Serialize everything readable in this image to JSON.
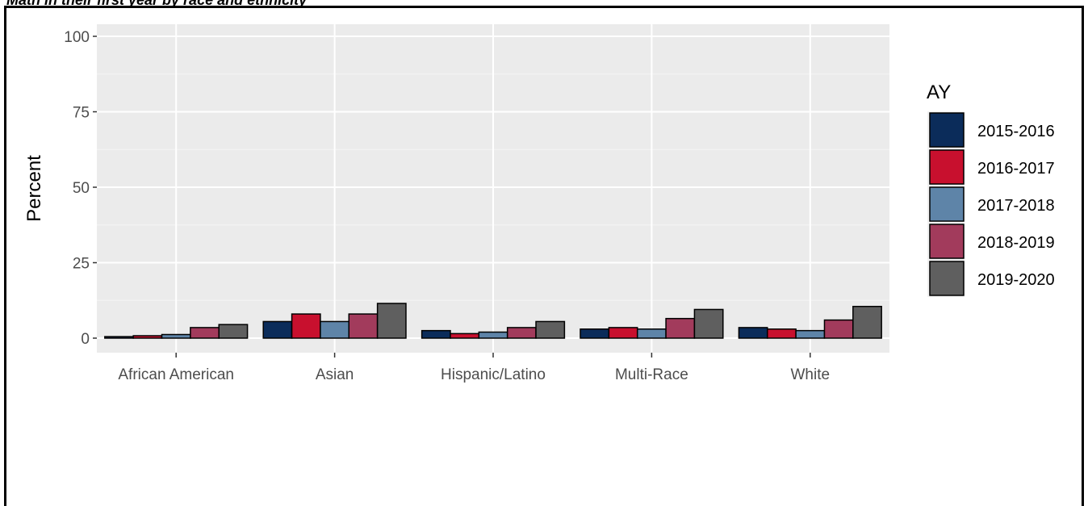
{
  "page": {
    "caption": "Math in their first year by race and ethnicity"
  },
  "chart_data": {
    "type": "bar",
    "title": "",
    "xlabel": "",
    "ylabel": "Percent",
    "ylim": [
      0,
      100
    ],
    "yticks": [
      0,
      25,
      50,
      75,
      100
    ],
    "grid": true,
    "legend_position": "right",
    "legend_title": "AY",
    "categories": [
      "African American",
      "Asian",
      "Hispanic/Latino",
      "Multi-Race",
      "White"
    ],
    "series": [
      {
        "name": "2015-2016",
        "color": "#0b2c5a",
        "values": [
          0.5,
          5.5,
          2.5,
          3.0,
          3.5
        ]
      },
      {
        "name": "2016-2017",
        "color": "#c8102e",
        "values": [
          0.8,
          8.0,
          1.5,
          3.5,
          3.0
        ]
      },
      {
        "name": "2017-2018",
        "color": "#5e84a8",
        "values": [
          1.2,
          5.5,
          2.0,
          3.0,
          2.5
        ]
      },
      {
        "name": "2018-2019",
        "color": "#a23b5c",
        "values": [
          3.5,
          8.0,
          3.5,
          6.5,
          6.0
        ]
      },
      {
        "name": "2019-2020",
        "color": "#5f5f5f",
        "values": [
          4.5,
          11.5,
          5.5,
          9.5,
          10.5
        ]
      }
    ]
  }
}
